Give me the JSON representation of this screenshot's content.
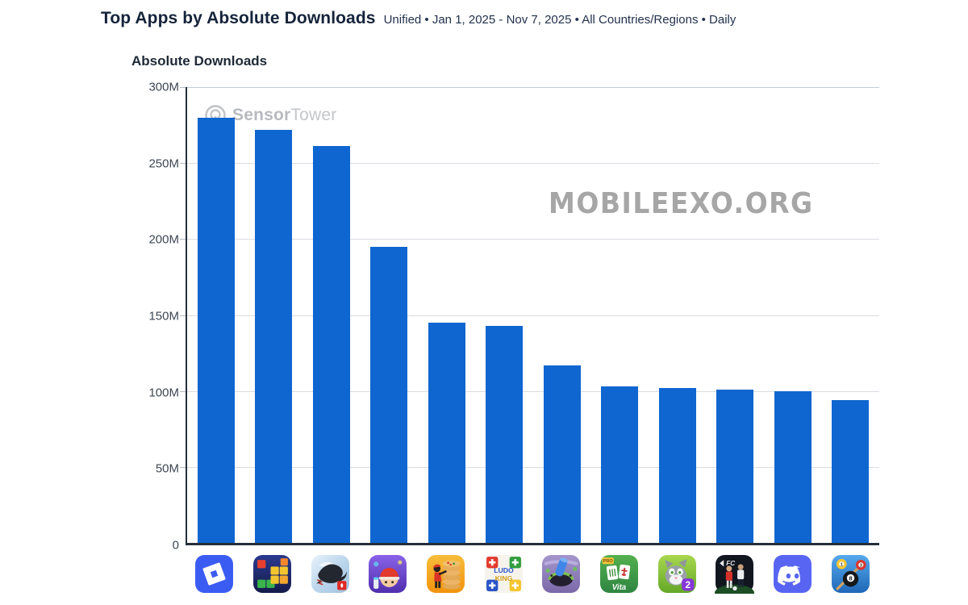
{
  "header": {
    "title": "Top Apps by Absolute Downloads",
    "subtitle": "Unified • Jan 1, 2025 - Nov 7, 2025 • All Countries/Regions • Daily"
  },
  "axis_title": "Absolute Downloads",
  "watermarks": {
    "sensor_tower_bold": "Sensor",
    "sensor_tower_light": "Tower",
    "site": "MOBILEEXO.ORG"
  },
  "colors": {
    "bar": "#0f66d0",
    "grid": "#d9dce2",
    "axis": "#262e39",
    "title": "#16243a",
    "tick": "#3d4752",
    "wm": "#b7babf",
    "wm2": "#a6a6a6"
  },
  "chart_data": {
    "type": "bar",
    "title": "Top Apps by Absolute Downloads",
    "subtitle": "Unified • Jan 1, 2025 - Nov 7, 2025 • All Countries/Regions • Daily",
    "xlabel": "",
    "ylabel": "Absolute Downloads",
    "unit": "millions of downloads",
    "ylim": [
      0,
      300
    ],
    "grid": true,
    "legend": "none",
    "y_ticks": [
      {
        "label": "300M",
        "value": 300
      },
      {
        "label": "250M",
        "value": 250
      },
      {
        "label": "200M",
        "value": 200
      },
      {
        "label": "150M",
        "value": 150
      },
      {
        "label": "100M",
        "value": 100
      },
      {
        "label": "50M",
        "value": 50
      },
      {
        "label": "0",
        "value": 0
      }
    ],
    "categories": [
      "Roblox",
      "Block Blast!",
      "Garena Free Fire",
      "Subway Surfers",
      "Pizza Ready!",
      "Ludo King",
      "Hole.io",
      "Vita Mahjong",
      "My Talking Tom 2",
      "EA Sports FC Mobile",
      "Discord",
      "8 Ball Pool"
    ],
    "category_icons": [
      "roblox-icon",
      "block-blast-icon",
      "free-fire-icon",
      "subway-surfers-icon",
      "pizza-ready-icon",
      "ludo-king-icon",
      "hole-game-icon",
      "vita-mahjong-icon",
      "my-talking-tom-2-icon",
      "ea-fc-mobile-icon",
      "discord-icon",
      "8-ball-pool-icon"
    ],
    "values": [
      280,
      272,
      261,
      195,
      145,
      143,
      117,
      103,
      102,
      101,
      100,
      94
    ]
  },
  "icon_glyphs": {
    "ludo_line1": "LUDO",
    "ludo_line2": "KING",
    "pro": "PRO",
    "vita": "Vita",
    "tom_badge": "2",
    "fc": "FC",
    "ball_1": "1",
    "ball_3": "3",
    "ball_8": "8"
  }
}
